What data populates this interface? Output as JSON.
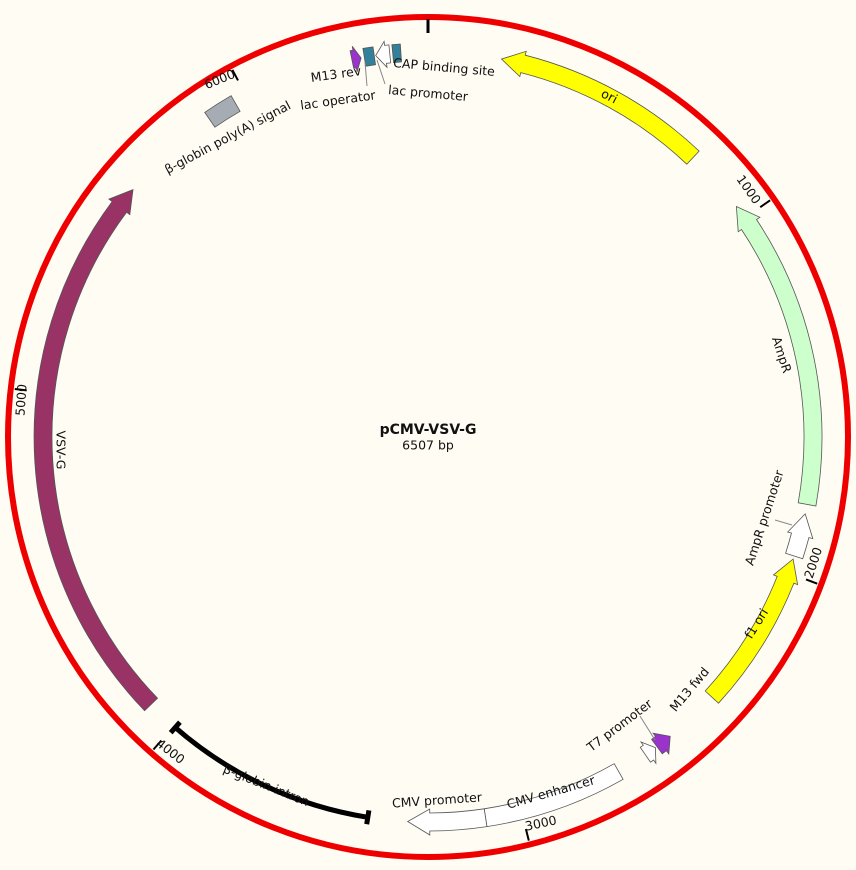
{
  "plasmid": {
    "name": "pCMV-VSV-G",
    "length_label": "6507 bp",
    "length_bp": 6507
  },
  "colors": {
    "backbone": "#ee0000",
    "background": "#fffcf3"
  },
  "ticks": [
    {
      "bp": 1000,
      "label": "1000"
    },
    {
      "bp": 2000,
      "label": "2000"
    },
    {
      "bp": 3000,
      "label": "3000"
    },
    {
      "bp": 4000,
      "label": "4000"
    },
    {
      "bp": 5000,
      "label": "5000"
    },
    {
      "bp": 6000,
      "label": "6000"
    }
  ],
  "features": [
    {
      "name": "ori",
      "start": 199,
      "end": 786,
      "direction": "reverse",
      "style": "arrow",
      "color": "#ffff00"
    },
    {
      "name": "AmpR",
      "start": 962,
      "end": 1809,
      "direction": "reverse",
      "style": "arrow",
      "color": "#ccffcc"
    },
    {
      "name": "AmpR promoter",
      "start": 1835,
      "end": 1952,
      "direction": "reverse",
      "style": "arrow",
      "color": "#ffffff"
    },
    {
      "name": "f1 ori",
      "start": 1961,
      "end": 2395,
      "direction": "reverse",
      "style": "arrow",
      "color": "#ffff00"
    },
    {
      "name": "M13 fwd",
      "start": 2549,
      "end": 2594,
      "direction": "reverse",
      "style": "arrow",
      "color": "#9933cc"
    },
    {
      "name": "T7 promoter",
      "start": 2599,
      "end": 2632,
      "direction": "reverse",
      "style": "arrow",
      "color": "#ffffff"
    },
    {
      "name": "CMV enhancer",
      "start": 2717,
      "end": 3098,
      "direction": "none",
      "style": "box",
      "color": "#ffffff"
    },
    {
      "name": "CMV promoter",
      "start": 3098,
      "end": 3308,
      "direction": "forward",
      "style": "arrow",
      "color": "#ffffff"
    },
    {
      "name": "β-globin intron",
      "start": 3416,
      "end": 3995,
      "direction": "none",
      "style": "line",
      "color": "#000000"
    },
    {
      "name": "VSV-G",
      "start": 4085,
      "end": 5603,
      "direction": "forward",
      "style": "arrow",
      "color": "#993366"
    },
    {
      "name": "β-globin poly(A) signal",
      "start": 5883,
      "end": 5965,
      "direction": "none",
      "style": "box",
      "color": "#a6acb3"
    },
    {
      "name": "M13 rev",
      "start": 6301,
      "end": 6326,
      "direction": "forward",
      "style": "arrow",
      "color": "#9933cc"
    },
    {
      "name": "lac operator",
      "start": 6335,
      "end": 6362,
      "direction": "none",
      "style": "box",
      "color": "#33809a"
    },
    {
      "name": "lac promoter",
      "start": 6366,
      "end": 6404,
      "direction": "reverse",
      "style": "arrow",
      "color": "#ffffff"
    },
    {
      "name": "CAP binding site",
      "start": 6412,
      "end": 6434,
      "direction": "none",
      "style": "box",
      "color": "#33809a"
    }
  ]
}
